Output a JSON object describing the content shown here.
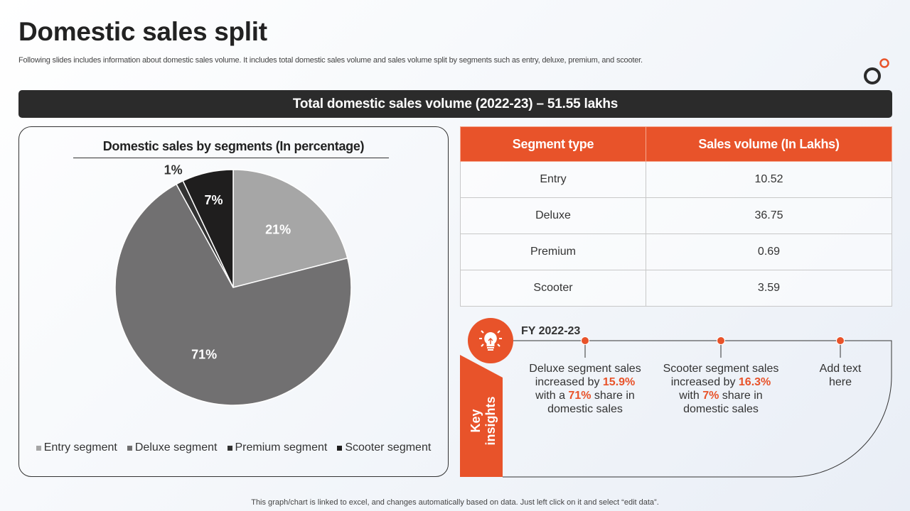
{
  "header": {
    "title": "Domestic sales split",
    "subtitle": "Following slides includes information about domestic sales volume. It includes total domestic sales volume and sales volume split by segments such as entry, deluxe, premium, and scooter."
  },
  "banner": {
    "text": "Total domestic sales volume (2022-23) – 51.55 lakhs"
  },
  "chart_data": {
    "type": "pie",
    "title": "Domestic sales by segments (In percentage)",
    "categories": [
      "Entry segment",
      "Deluxe segment",
      "Premium segment",
      "Scooter segment"
    ],
    "values": [
      21,
      71,
      1,
      7
    ],
    "data_labels": [
      "21%",
      "71%",
      "1%",
      "7%"
    ],
    "colors": [
      "#a6a6a6",
      "#717071",
      "#333333",
      "#1f1e1e"
    ],
    "legend_position": "bottom"
  },
  "table": {
    "headers": [
      "Segment type",
      "Sales volume (In Lakhs)"
    ],
    "rows": [
      [
        "Entry",
        "10.52"
      ],
      [
        "Deluxe",
        "36.75"
      ],
      [
        "Premium",
        "0.69"
      ],
      [
        "Scooter",
        "3.59"
      ]
    ]
  },
  "insights": {
    "icon": "lightbulb-icon",
    "period": "FY 2022-23",
    "tab_label_line1": "Key",
    "tab_label_line2": "insights",
    "items": [
      {
        "pre": "Deluxe segment sales increased by ",
        "hl1": "15.9%",
        "mid": " with a ",
        "hl2": "71%",
        "post": " share in domestic sales"
      },
      {
        "pre": "Scooter segment sales increased by ",
        "hl1": "16.3%",
        "mid": " with ",
        "hl2": "7%",
        "post": " share in domestic sales"
      },
      {
        "pre": "Add text here",
        "hl1": "",
        "mid": "",
        "hl2": "",
        "post": ""
      }
    ]
  },
  "footer": {
    "text": "This graph/chart is linked to excel, and changes automatically based on data. Just left click on it and select “edit data”."
  },
  "colors": {
    "accent": "#e8532a",
    "dark": "#2b2b2b"
  }
}
